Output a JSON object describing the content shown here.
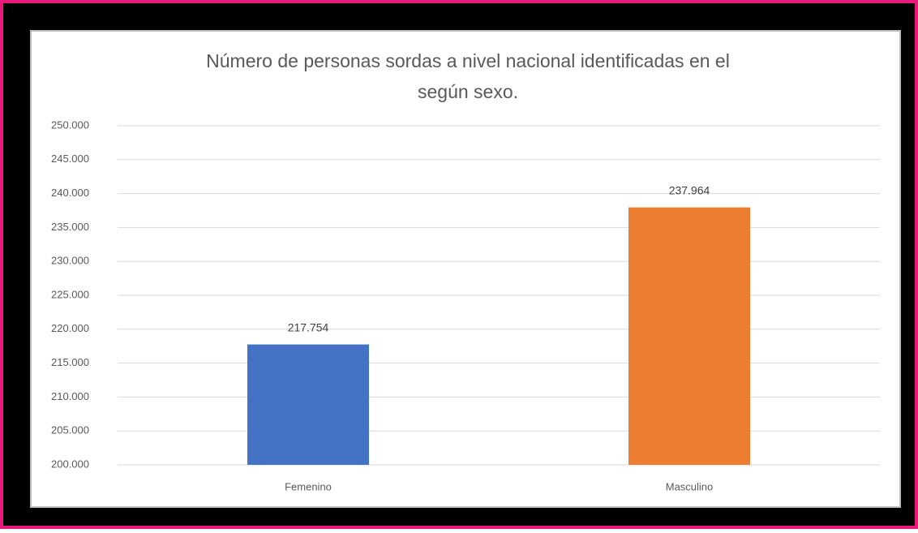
{
  "chart_data": {
    "type": "bar",
    "title": [
      "Número de personas sordas a nivel nacional identificadas en el",
      "según sexo."
    ],
    "categories": [
      "Femenino",
      "Masculino"
    ],
    "values": [
      217754,
      237964
    ],
    "value_labels": [
      "217.754",
      "237.964"
    ],
    "colors": [
      "#4472c4",
      "#ed7d31"
    ],
    "ylim": [
      200000,
      250000
    ],
    "yticks": [
      {
        "value": 200000,
        "label": "200.000"
      },
      {
        "value": 205000,
        "label": "205.000"
      },
      {
        "value": 210000,
        "label": "210.000"
      },
      {
        "value": 215000,
        "label": "215.000"
      },
      {
        "value": 220000,
        "label": "220.000"
      },
      {
        "value": 225000,
        "label": "225.000"
      },
      {
        "value": 230000,
        "label": "230.000"
      },
      {
        "value": 235000,
        "label": "235.000"
      },
      {
        "value": 240000,
        "label": "240.000"
      },
      {
        "value": 245000,
        "label": "245.000"
      },
      {
        "value": 250000,
        "label": "250.000"
      }
    ],
    "grid": true
  }
}
